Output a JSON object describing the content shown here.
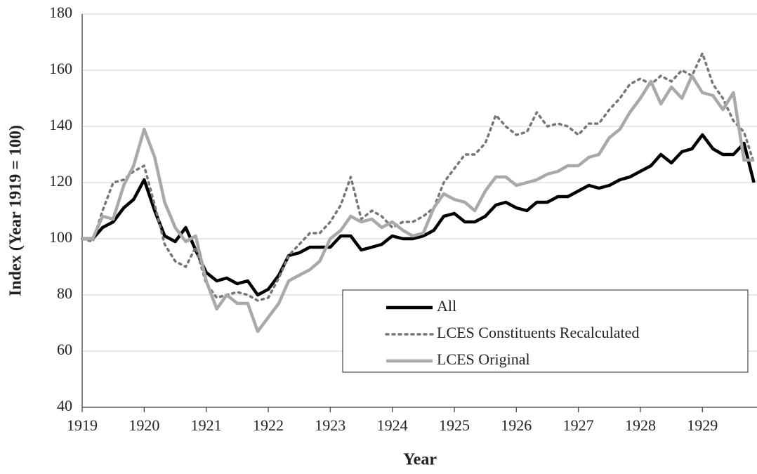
{
  "chart_data": {
    "type": "line",
    "x_label": "Year",
    "y_label": "Index (Year 1919 = 100)",
    "x": [
      1919,
      1919.17,
      1919.33,
      1919.5,
      1919.67,
      1919.83,
      1920,
      1920.17,
      1920.33,
      1920.5,
      1920.67,
      1920.83,
      1921,
      1921.17,
      1921.33,
      1921.5,
      1921.67,
      1921.83,
      1922,
      1922.17,
      1922.33,
      1922.5,
      1922.67,
      1922.83,
      1923,
      1923.17,
      1923.33,
      1923.5,
      1923.67,
      1923.83,
      1924,
      1924.17,
      1924.33,
      1924.5,
      1924.67,
      1924.83,
      1925,
      1925.17,
      1925.33,
      1925.5,
      1925.67,
      1925.83,
      1926,
      1926.17,
      1926.33,
      1926.5,
      1926.67,
      1926.83,
      1927,
      1927.17,
      1927.33,
      1927.5,
      1927.67,
      1927.83,
      1928,
      1928.17,
      1928.33,
      1928.5,
      1928.67,
      1928.83,
      1929,
      1929.17,
      1929.33,
      1929.5,
      1929.67,
      1929.83
    ],
    "series": [
      {
        "name": "All",
        "color": "#000000",
        "style": "solid",
        "values": [
          100,
          100,
          104,
          106,
          111,
          114,
          121,
          110,
          101,
          99,
          104,
          96,
          88,
          85,
          86,
          84,
          85,
          80,
          82,
          87,
          94,
          95,
          97,
          97,
          97,
          101,
          101,
          96,
          97,
          98,
          101,
          100,
          100,
          101,
          103,
          108,
          109,
          106,
          106,
          108,
          112,
          113,
          111,
          110,
          113,
          113,
          115,
          115,
          117,
          119,
          118,
          119,
          121,
          122,
          124,
          126,
          130,
          127,
          131,
          132,
          137,
          132,
          130,
          130,
          134,
          120
        ]
      },
      {
        "name": "LCES Constituents Recalculated",
        "color": "#767676",
        "style": "dotted",
        "values": [
          100,
          99,
          110,
          120,
          121,
          124,
          126,
          112,
          98,
          92,
          90,
          97,
          84,
          79,
          80,
          81,
          80,
          78,
          79,
          86,
          94,
          98,
          102,
          102,
          106,
          112,
          122,
          107,
          110,
          108,
          104,
          106,
          106,
          108,
          111,
          120,
          125,
          130,
          130,
          134,
          144,
          140,
          137,
          138,
          145,
          140,
          141,
          140,
          137,
          141,
          141,
          146,
          150,
          155,
          157,
          155,
          158,
          156,
          160,
          158,
          166,
          155,
          150,
          142,
          138,
          127
        ]
      },
      {
        "name": "LCES Original",
        "color": "#a9a9a9",
        "style": "solid",
        "values": [
          100,
          100,
          108,
          107,
          119,
          126,
          139,
          129,
          113,
          104,
          99,
          101,
          85,
          75,
          80,
          77,
          77,
          67,
          72,
          77,
          85,
          87,
          89,
          92,
          100,
          103,
          108,
          106,
          107,
          104,
          106,
          103,
          101,
          102,
          111,
          116,
          114,
          113,
          110,
          117,
          122,
          122,
          119,
          120,
          121,
          123,
          124,
          126,
          126,
          129,
          130,
          136,
          139,
          145,
          150,
          156,
          148,
          154,
          150,
          158,
          152,
          151,
          146,
          152,
          128,
          128
        ]
      }
    ],
    "xlim": [
      1919,
      1929.88
    ],
    "xticks": [
      1919,
      1920,
      1921,
      1922,
      1923,
      1924,
      1925,
      1926,
      1927,
      1928,
      1929
    ],
    "ylim": [
      40,
      180
    ],
    "yticks": [
      40,
      60,
      80,
      100,
      120,
      140,
      160,
      180
    ],
    "grid": true,
    "legend": "lower right"
  }
}
